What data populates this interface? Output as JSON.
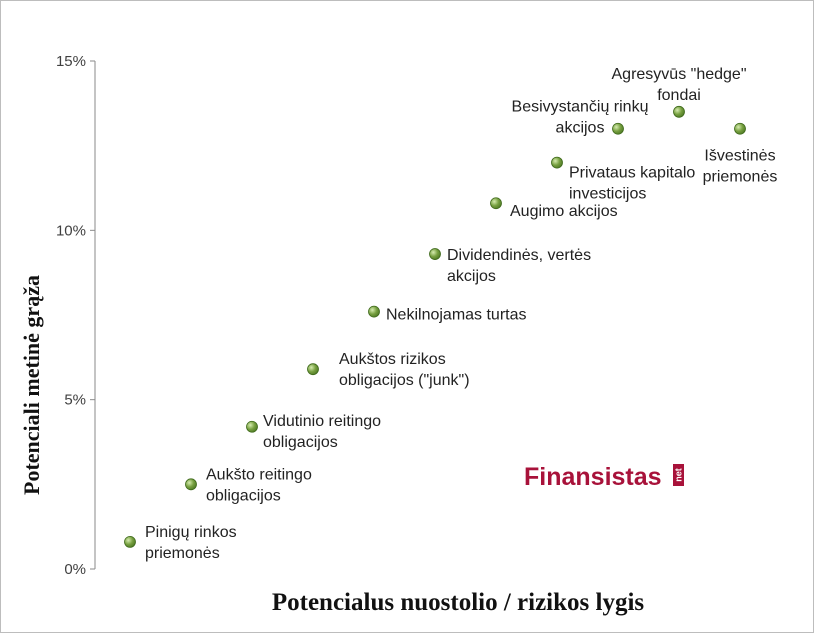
{
  "chart_data": {
    "type": "scatter",
    "title": "",
    "xlabel": "Potencialus nuostolio / rizikos lygis",
    "ylabel": "Potenciali metinė grąža",
    "ylim": [
      0,
      15
    ],
    "yticks": [
      "0%",
      "5%",
      "10%",
      "15%"
    ],
    "ytick_values": [
      0,
      5,
      10,
      15
    ],
    "xlim": [
      0,
      11
    ],
    "grid": false,
    "legend": "none",
    "marker_color": "#77a040",
    "points": [
      {
        "x": 1,
        "y": 0.8,
        "label": [
          "Pinigų rinkos",
          "priemonės"
        ]
      },
      {
        "x": 2,
        "y": 2.5,
        "label": [
          "Aukšto reitingo",
          "obligacijos"
        ]
      },
      {
        "x": 3,
        "y": 4.2,
        "label": [
          "Vidutinio reitingo",
          "obligacijos"
        ]
      },
      {
        "x": 4,
        "y": 5.9,
        "label": [
          "Aukštos rizikos",
          "obligacijos (\"junk\")"
        ]
      },
      {
        "x": 5,
        "y": 7.6,
        "label": [
          "Nekilnojamas turtas"
        ]
      },
      {
        "x": 6,
        "y": 9.3,
        "label": [
          "Dividendinės, vertės",
          "akcijos"
        ]
      },
      {
        "x": 7,
        "y": 10.8,
        "label": [
          "Augimo akcijos"
        ]
      },
      {
        "x": 8,
        "y": 12.0,
        "label": [
          "Privataus kapitalo",
          "investicijos"
        ]
      },
      {
        "x": 9,
        "y": 13.0,
        "label": [
          "Besivystančių rinkų",
          "akcijos"
        ]
      },
      {
        "x": 10,
        "y": 13.5,
        "label": [
          "Agresyvūs \"hedge\"",
          "fondai"
        ]
      },
      {
        "x": 11,
        "y": 13.0,
        "label": [
          "Išvestinės",
          "priemonės"
        ]
      }
    ]
  },
  "watermark": {
    "text": "Finansistas",
    "suffix": "net",
    "color": "#a8123a"
  }
}
